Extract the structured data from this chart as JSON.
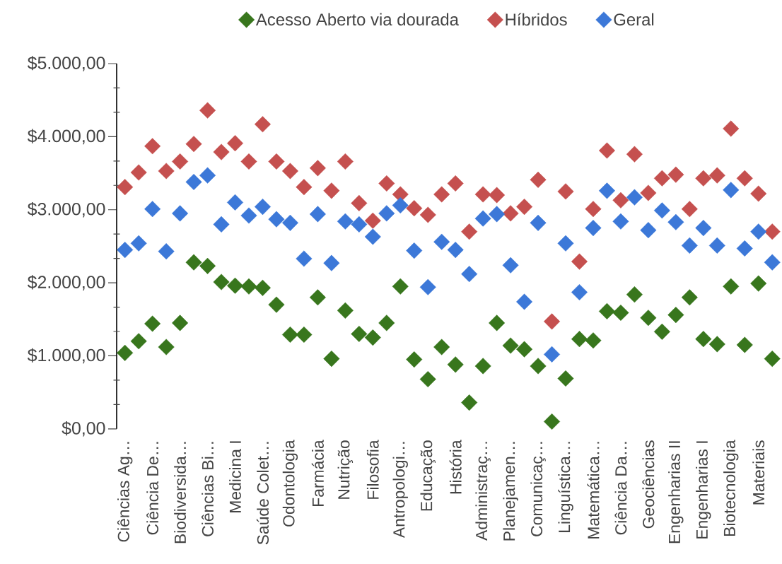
{
  "chart_data": {
    "type": "scatter",
    "marker": "diamond",
    "legend": "top",
    "categories": [
      "Ciências Ag…",
      null,
      "Ciência De…",
      null,
      "Biodiversida…",
      null,
      "Ciências Bi…",
      null,
      "Medicina I",
      null,
      "Saúde Colet…",
      null,
      "Odontologia",
      null,
      "Farmácia",
      null,
      "Nutrição",
      null,
      "Filosofia",
      null,
      "Antropologi…",
      null,
      "Educação",
      null,
      "História",
      null,
      "Administraç…",
      null,
      "Planejamen…",
      null,
      "Comunicaç…",
      null,
      "Linguística…",
      null,
      "Matemática…",
      null,
      "Ciência Da…",
      null,
      "Geociências",
      null,
      "Engenharias II",
      null,
      "Engenharias I",
      null,
      "Biotecnologia",
      null,
      "Materiais",
      null
    ],
    "series": [
      {
        "name": "Acesso Aberto via dourada",
        "color": "#38761d",
        "values": [
          1040,
          1200,
          1440,
          1120,
          1450,
          2280,
          2230,
          2010,
          1960,
          1950,
          1930,
          1700,
          1290,
          1290,
          1800,
          960,
          1620,
          1300,
          1250,
          1450,
          1950,
          950,
          680,
          1120,
          880,
          360,
          860,
          1450,
          1140,
          1090,
          860,
          100,
          690,
          1230,
          1210,
          1610,
          1590,
          1840,
          1520,
          1330,
          1560,
          1800,
          1230,
          1160,
          1950,
          1150,
          1990,
          960
        ]
      },
      {
        "name": "Híbridos",
        "color": "#c5504f",
        "values": [
          3310,
          3510,
          3870,
          3530,
          3660,
          3900,
          4360,
          3790,
          3910,
          3660,
          4170,
          3660,
          3530,
          3310,
          3570,
          3260,
          3660,
          3090,
          2850,
          3360,
          3210,
          3020,
          2930,
          3210,
          3360,
          2700,
          3210,
          3200,
          2950,
          3040,
          3410,
          1470,
          3250,
          2290,
          3010,
          3810,
          3130,
          3760,
          3230,
          3430,
          3480,
          3010,
          3430,
          3470,
          4110,
          3430,
          3220,
          2700
        ]
      },
      {
        "name": "Geral",
        "color": "#3c78d8",
        "values": [
          2450,
          2540,
          3010,
          2430,
          2950,
          3380,
          3470,
          2800,
          3100,
          2920,
          3040,
          2870,
          2820,
          2330,
          2940,
          2270,
          2840,
          2800,
          2630,
          2950,
          3060,
          2440,
          1940,
          2560,
          2450,
          2120,
          2880,
          2940,
          2240,
          1740,
          2820,
          1020,
          2540,
          1870,
          2750,
          3260,
          2840,
          3170,
          2720,
          2990,
          2830,
          2510,
          2750,
          2510,
          3270,
          2470,
          2700,
          2280
        ]
      }
    ],
    "ylim": [
      0,
      5000
    ],
    "yticks": [
      {
        "value": 0,
        "label": "$0,00"
      },
      {
        "value": 333.33,
        "label": null
      },
      {
        "value": 666.67,
        "label": null
      },
      {
        "value": 1000,
        "label": "$1.000,00"
      },
      {
        "value": 1333.33,
        "label": null
      },
      {
        "value": 1666.67,
        "label": null
      },
      {
        "value": 2000,
        "label": "$2.000,00"
      },
      {
        "value": 2333.33,
        "label": null
      },
      {
        "value": 2666.67,
        "label": null
      },
      {
        "value": 3000,
        "label": "$3.000,00"
      },
      {
        "value": 3333.33,
        "label": null
      },
      {
        "value": 3666.67,
        "label": null
      },
      {
        "value": 4000,
        "label": "$4.000,00"
      },
      {
        "value": 4333.33,
        "label": null
      },
      {
        "value": 4666.67,
        "label": null
      },
      {
        "value": 5000,
        "label": "$5.000,00"
      }
    ]
  }
}
